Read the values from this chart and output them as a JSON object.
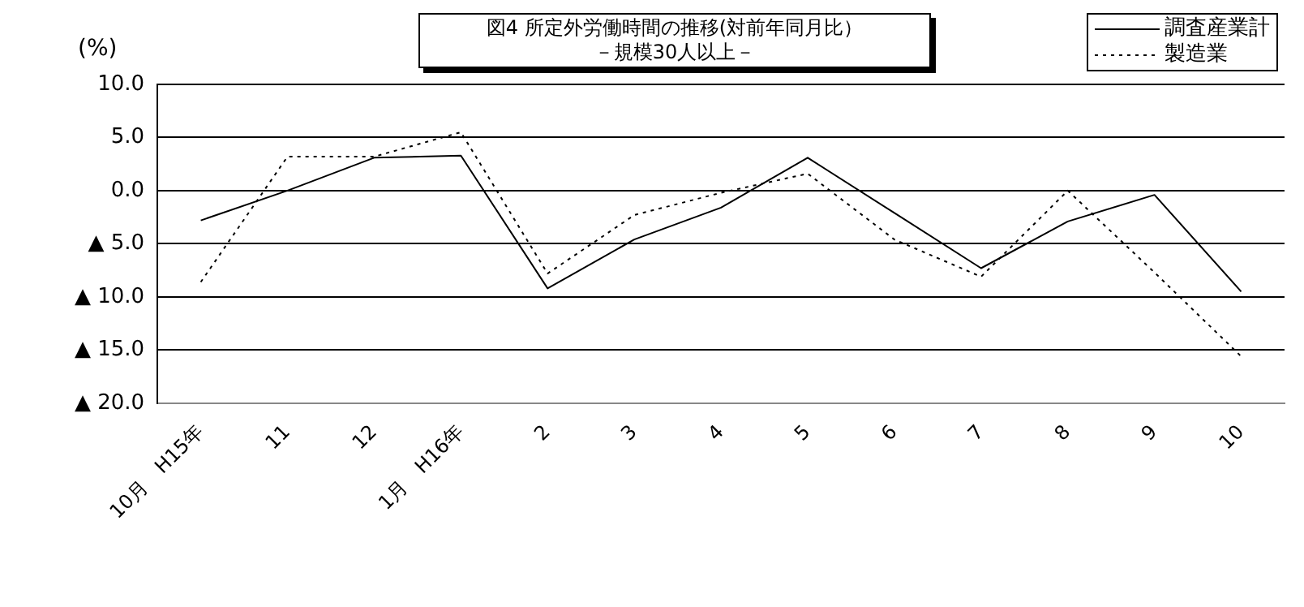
{
  "chart_data": {
    "type": "line",
    "title": "図4  所定外労働時間の推移(対前年同月比）",
    "subtitle": "－規模30人以上－",
    "ylabel": "(%)",
    "categories": [
      "10月　H15年",
      "11",
      "12",
      "1月　H16年",
      "2",
      "3",
      "4",
      "5",
      "6",
      "7",
      "8",
      "9",
      "10"
    ],
    "series": [
      {
        "name": "調査産業計",
        "color": "#000000",
        "line_style": "solid",
        "values": [
          -2.8,
          0,
          3.1,
          3.3,
          -9.2,
          -4.6,
          -1.6,
          3.1,
          -2.1,
          -7.3,
          -2.9,
          -0.4,
          -9.5
        ]
      },
      {
        "name": "製造業",
        "color": "#000000",
        "line_style": "dotted",
        "values": [
          -8.6,
          3.2,
          3.2,
          5.5,
          -7.8,
          -2.3,
          -0.2,
          1.6,
          -4.6,
          -8.1,
          0,
          -7.7,
          -15.6
        ]
      }
    ],
    "ylim": [
      -20,
      10
    ],
    "yticks": [
      {
        "value": 10,
        "label": "10.0"
      },
      {
        "value": 5,
        "label": "5.0"
      },
      {
        "value": 0,
        "label": "0.0"
      },
      {
        "value": -5,
        "label": "▲ 5.0"
      },
      {
        "value": -10,
        "label": "▲ 10.0"
      },
      {
        "value": -15,
        "label": "▲ 15.0"
      },
      {
        "value": -20,
        "label": "▲ 20.0"
      }
    ],
    "grid": "y",
    "legend": "top right",
    "marker": "none"
  }
}
